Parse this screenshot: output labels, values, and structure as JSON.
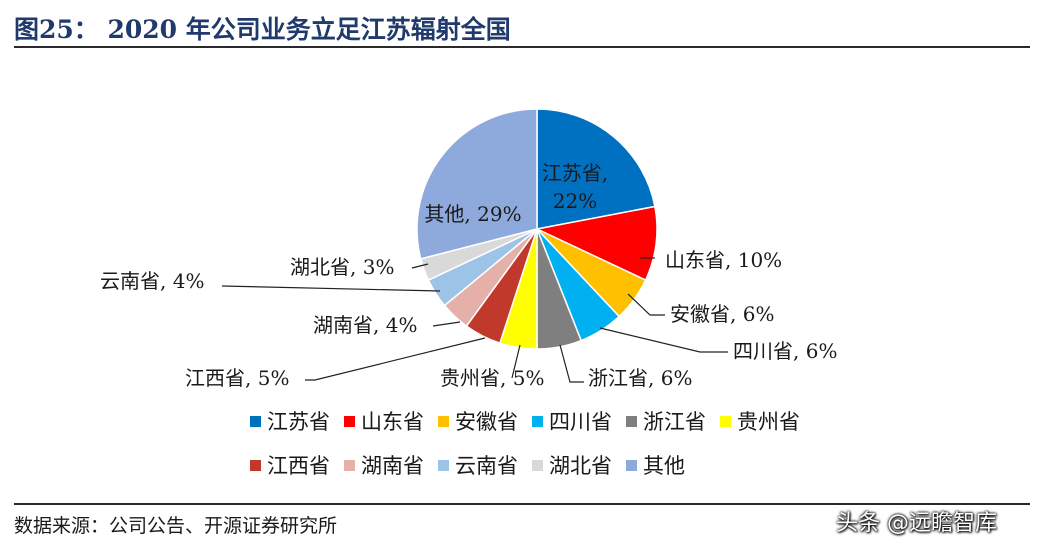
{
  "header": {
    "title": "图25：  2020 年公司业务立足江苏辐射全国"
  },
  "footer": {
    "source": "数据来源：公司公告、开源证券研究所",
    "watermark": "头条 @远瞻智库"
  },
  "chart_data": {
    "type": "pie",
    "title": "",
    "slices": [
      {
        "name": "江苏省",
        "value": 22,
        "label": "江苏省,",
        "pct": "22%",
        "color": "#0070c0"
      },
      {
        "name": "山东省",
        "value": 10,
        "label": "山东省, 10%",
        "color": "#ff0000"
      },
      {
        "name": "安徽省",
        "value": 6,
        "label": "安徽省, 6%",
        "color": "#ffc000"
      },
      {
        "name": "四川省",
        "value": 6,
        "label": "四川省, 6%",
        "color": "#00b0f0"
      },
      {
        "name": "浙江省",
        "value": 6,
        "label": "浙江省, 6%",
        "color": "#7f7f7f"
      },
      {
        "name": "贵州省",
        "value": 5,
        "label": "贵州省, 5%",
        "color": "#ffff00"
      },
      {
        "name": "江西省",
        "value": 5,
        "label": "江西省, 5%",
        "color": "#c0392b"
      },
      {
        "name": "湖南省",
        "value": 4,
        "label": "湖南省, 4%",
        "color": "#e6b0aa"
      },
      {
        "name": "云南省",
        "value": 4,
        "label": "云南省, 4%",
        "color": "#9dc3e6"
      },
      {
        "name": "湖北省",
        "value": 3,
        "label": "湖北省, 3%",
        "color": "#d9d9d9"
      },
      {
        "name": "其他",
        "value": 29,
        "label": "其他, 29%",
        "color": "#8ea9db"
      }
    ],
    "legend_position": "bottom"
  }
}
